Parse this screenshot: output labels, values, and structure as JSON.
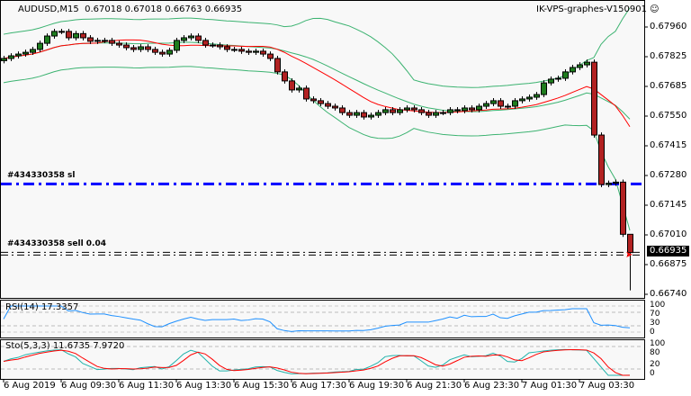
{
  "header": {
    "symbol": "AUDUSD,M15",
    "ohlc": "0.67018 0.67018 0.66763 0.66935",
    "server": "IK-VPS-graphes-V150901"
  },
  "colors": {
    "bull": "#1e7d1e",
    "bear": "#b22222",
    "ma": "#ff0000",
    "bands": "#3cb371",
    "order_line": "#0000ff",
    "rsi": "#1e90ff",
    "stoch_main": "#20b2aa",
    "stoch_signal": "#ff0000",
    "background": "#f8f8f8"
  },
  "icons": {
    "smiley": "smiley-icon",
    "arrow": "order-arrow-icon"
  },
  "order_lines": {
    "sl_label": "#434330358 sl",
    "sell_label": "#434330358 sell 0.04",
    "sl_price": 0.67247,
    "sell_price": 0.6693
  },
  "price_axis": {
    "labels": [
      "0.67960",
      "0.67825",
      "0.67685",
      "0.67550",
      "0.67415",
      "0.67280",
      "0.67145",
      "0.67010",
      "0.66875",
      "0.66740"
    ],
    "current": "0.66935"
  },
  "time_axis": [
    "6 Aug 2019",
    "6 Aug 09:30",
    "6 Aug 11:30",
    "6 Aug 13:30",
    "6 Aug 15:30",
    "6 Aug 17:30",
    "6 Aug 19:30",
    "6 Aug 21:30",
    "6 Aug 23:30",
    "7 Aug 01:30",
    "7 Aug 03:30"
  ],
  "rsi": {
    "label": "RSI(14) 17.3357",
    "levels": [
      "100",
      "70",
      "30",
      "0"
    ]
  },
  "stoch": {
    "label": "Sto(5,3,3) 11.6735 7.9720",
    "levels": [
      "100",
      "80",
      "20",
      "0"
    ]
  },
  "chart_data": {
    "type": "candlestick",
    "ylim": [
      0.6674,
      0.6804
    ],
    "closes": [
      0.67817,
      0.67829,
      0.67837,
      0.67845,
      0.67858,
      0.67886,
      0.67919,
      0.6794,
      0.6794,
      0.67911,
      0.6793,
      0.67911,
      0.67895,
      0.67899,
      0.67899,
      0.67886,
      0.67878,
      0.67866,
      0.67858,
      0.6787,
      0.67858,
      0.67845,
      0.67837,
      0.67854,
      0.67899,
      0.67911,
      0.67919,
      0.67899,
      0.67878,
      0.67878,
      0.6787,
      0.67858,
      0.67858,
      0.6785,
      0.67845,
      0.6785,
      0.67837,
      0.67817,
      0.67756,
      0.67715,
      0.67674,
      0.67682,
      0.67633,
      0.67625,
      0.67612,
      0.676,
      0.67592,
      0.67571,
      0.67559,
      0.67571,
      0.67551,
      0.67559,
      0.67571,
      0.67584,
      0.67571,
      0.67584,
      0.67592,
      0.67584,
      0.67571,
      0.67559,
      0.67571,
      0.67571,
      0.67584,
      0.6758,
      0.67592,
      0.67584,
      0.676,
      0.67612,
      0.67625,
      0.676,
      0.676,
      0.67625,
      0.67633,
      0.67641,
      0.67653,
      0.67706,
      0.67723,
      0.67727,
      0.67756,
      0.67776,
      0.67788,
      0.678,
      0.67469,
      0.67244,
      0.6725,
      0.67255,
      0.67018,
      0.66935
    ],
    "last_candle": {
      "open": 0.67018,
      "high": 0.67018,
      "low": 0.66763,
      "close": 0.66935
    }
  }
}
